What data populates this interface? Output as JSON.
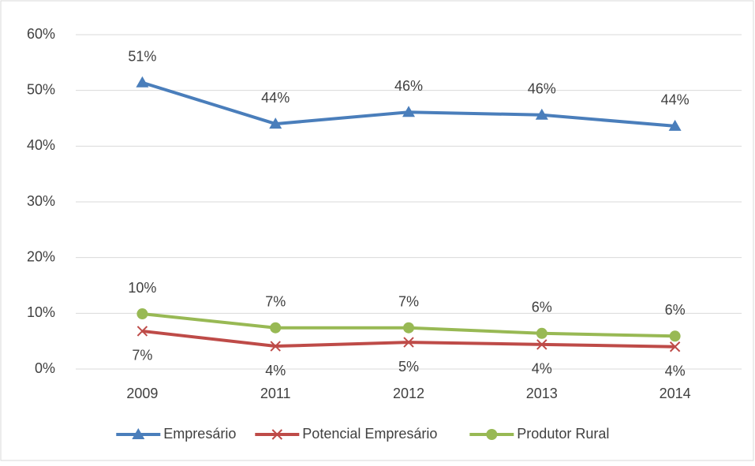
{
  "chart_data": {
    "type": "line",
    "categories": [
      "2009",
      "2011",
      "2012",
      "2013",
      "2014"
    ],
    "series": [
      {
        "name": "Empresário",
        "color": "#4a7ebb",
        "marker": "triangle",
        "values": [
          51.4,
          44.0,
          46.1,
          45.6,
          43.6
        ],
        "value_labels": [
          "51%",
          "44%",
          "46%",
          "46%",
          "44%"
        ]
      },
      {
        "name": "Potencial Empresário",
        "color": "#be4b48",
        "marker": "x",
        "values": [
          6.8,
          4.1,
          4.8,
          4.4,
          4.0
        ],
        "value_labels": [
          "7%",
          "4%",
          "5%",
          "4%",
          "4%"
        ]
      },
      {
        "name": "Produtor Rural",
        "color": "#98b954",
        "marker": "circle",
        "values": [
          9.9,
          7.4,
          7.4,
          6.4,
          5.9
        ],
        "value_labels": [
          "10%",
          "7%",
          "7%",
          "6%",
          "6%"
        ]
      }
    ],
    "ylim": [
      0,
      60
    ],
    "yticks": [
      {
        "value": 0,
        "label": "0%"
      },
      {
        "value": 10,
        "label": "10%"
      },
      {
        "value": 20,
        "label": "20%"
      },
      {
        "value": 30,
        "label": "30%"
      },
      {
        "value": 40,
        "label": "40%"
      },
      {
        "value": 50,
        "label": "50%"
      },
      {
        "value": 60,
        "label": "60%"
      }
    ],
    "grid": true,
    "legend": "bottom"
  }
}
